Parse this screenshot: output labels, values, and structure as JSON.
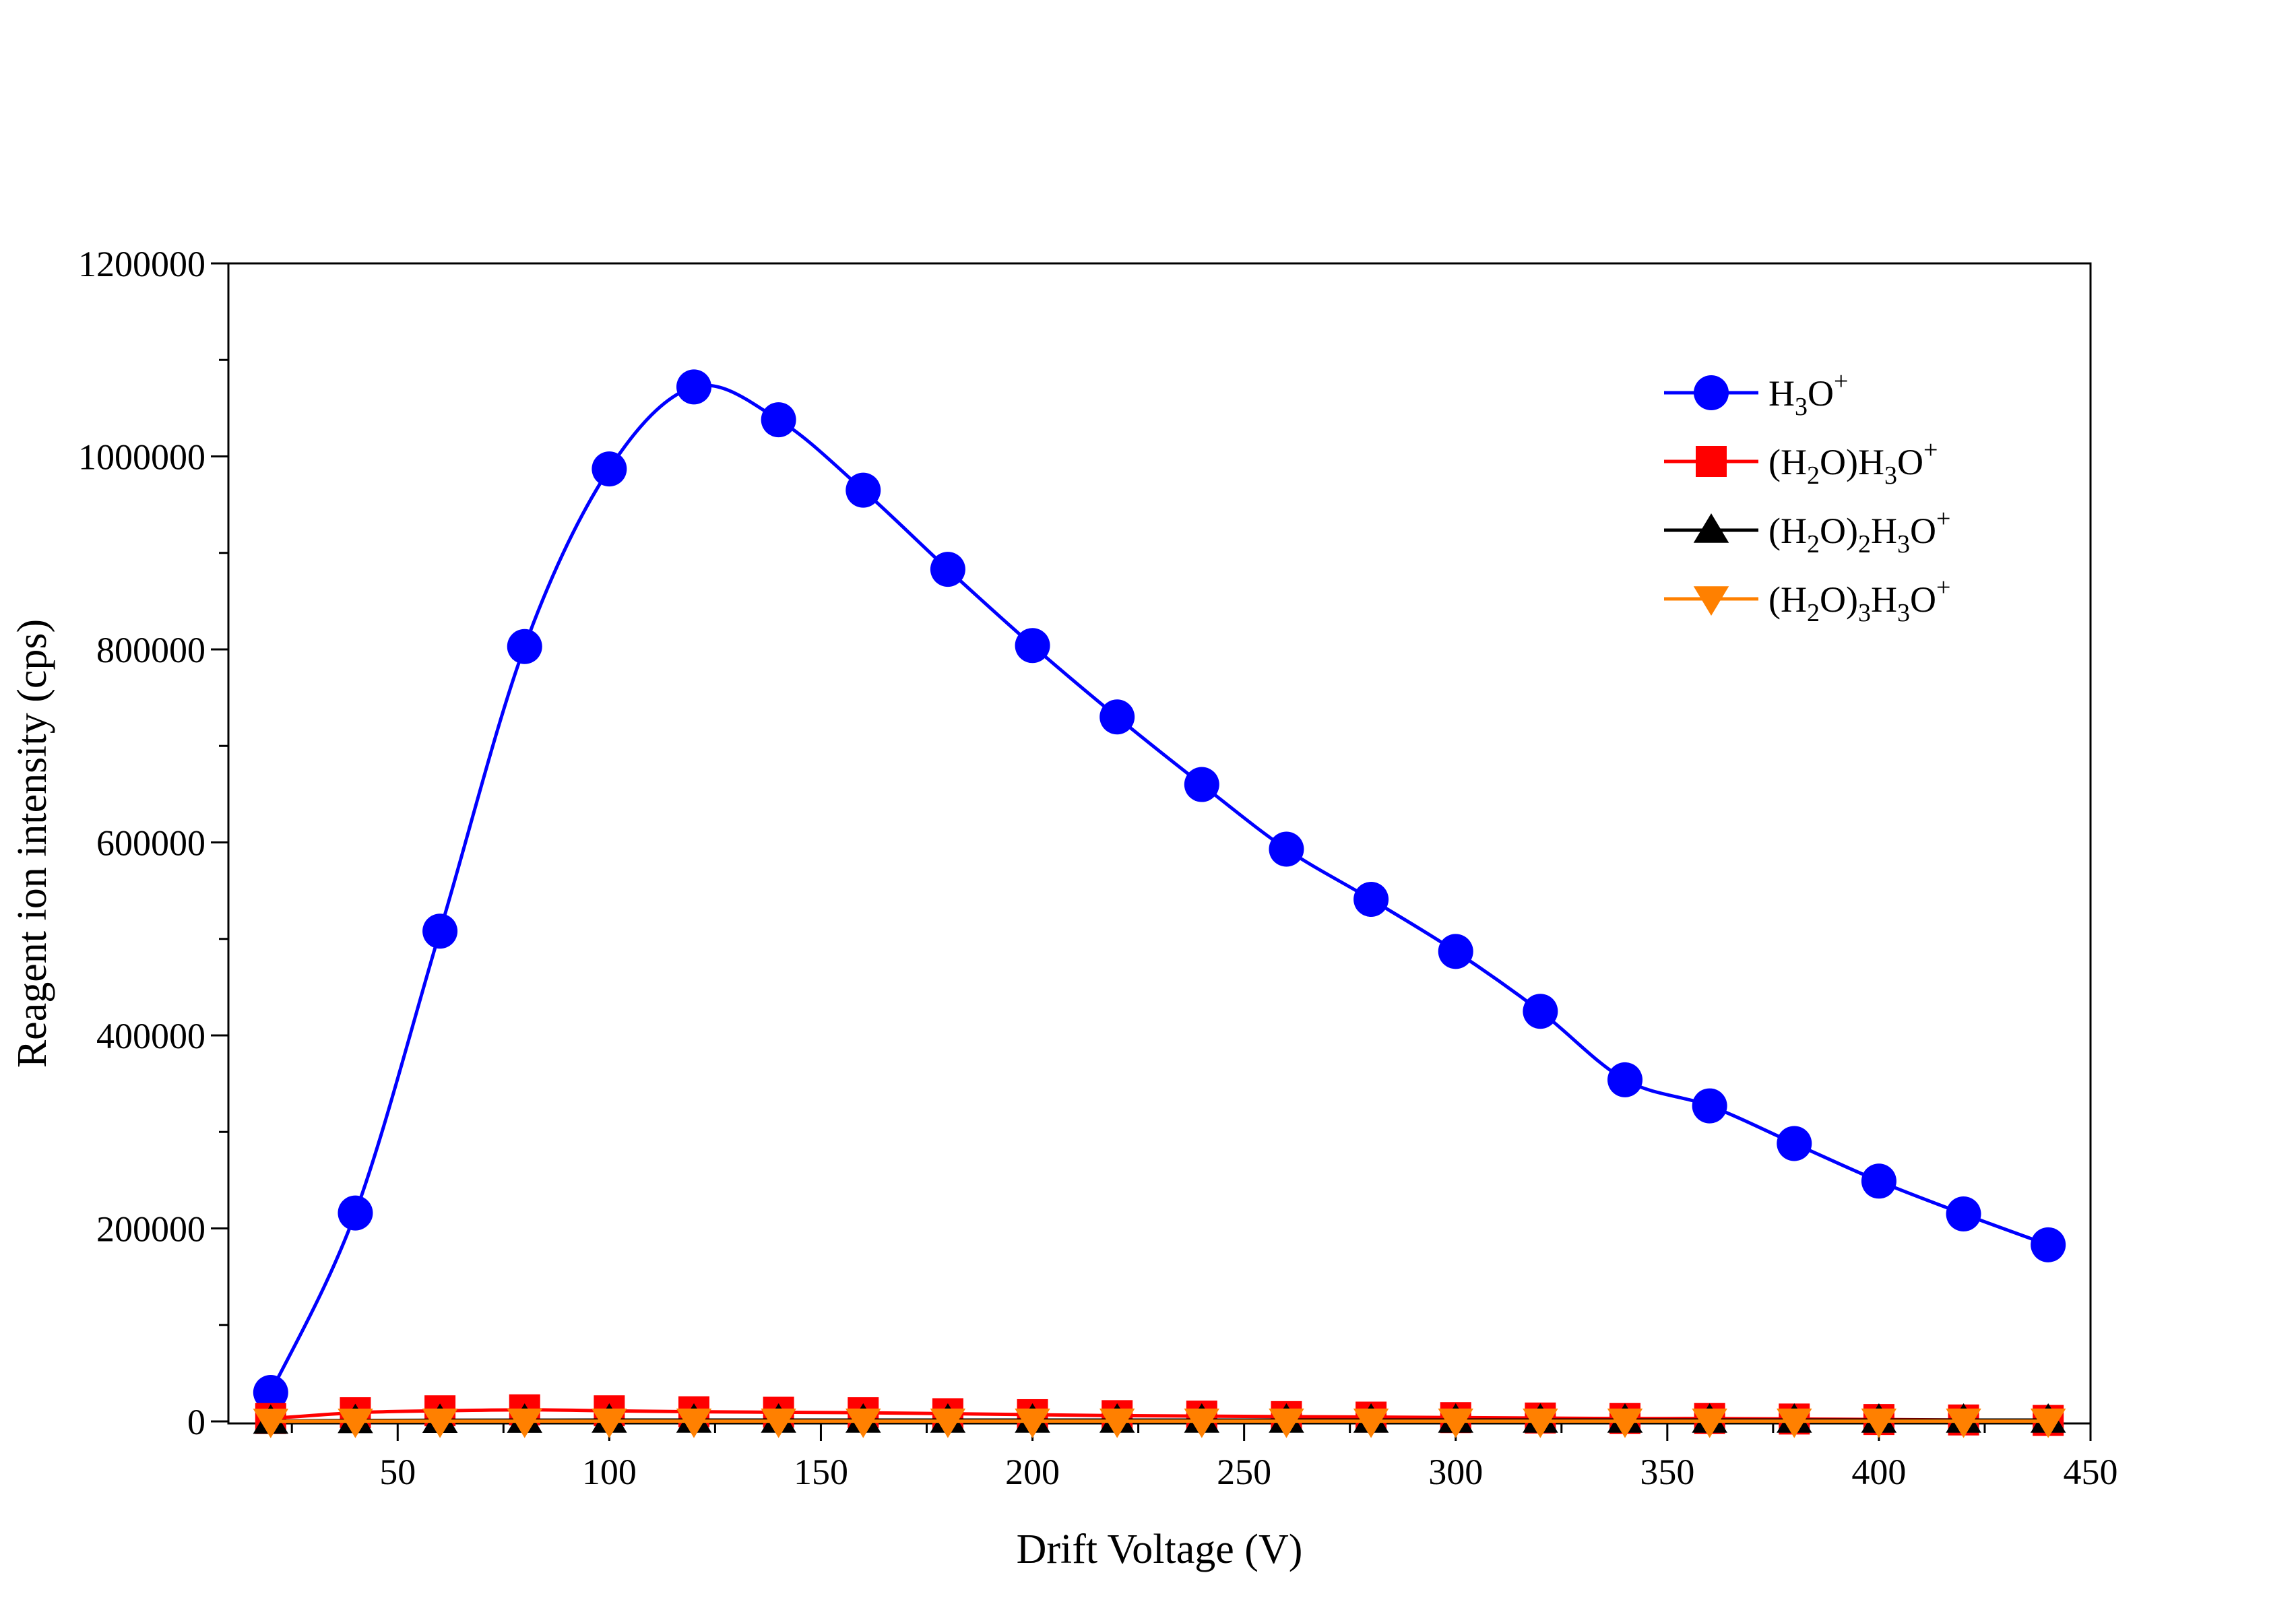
{
  "chart_data": {
    "type": "line",
    "title": "",
    "xlabel": "Drift Voltage (V)",
    "ylabel": "Reagent ion intensity (cps)",
    "xlim": [
      10,
      450
    ],
    "ylim": [
      0,
      1200000
    ],
    "x_ticks": [
      50,
      100,
      150,
      200,
      250,
      300,
      350,
      400,
      450
    ],
    "x_tick_labels": [
      "50",
      "100",
      "150",
      "200",
      "250",
      "300",
      "350",
      "400",
      "450"
    ],
    "y_ticks": [
      0,
      200000,
      400000,
      600000,
      800000,
      1000000,
      1200000
    ],
    "y_tick_labels": [
      "0",
      "200000",
      "400000",
      "600000",
      "800000",
      "1000000",
      "1200000"
    ],
    "grid": false,
    "legend_position": "top-right",
    "x": [
      20,
      40,
      60,
      80,
      100,
      120,
      140,
      160,
      180,
      200,
      220,
      240,
      260,
      280,
      300,
      320,
      340,
      360,
      380,
      400,
      420,
      440
    ],
    "series": [
      {
        "name": "H3O+",
        "legend_parts": [
          [
            "H",
            ""
          ],
          [
            "3",
            "sub"
          ],
          [
            "O",
            ""
          ],
          [
            "+",
            "sup"
          ]
        ],
        "color": "#0000ff",
        "marker": "circle",
        "values": [
          30000,
          216000,
          508000,
          803000,
          987000,
          1072000,
          1038000,
          965000,
          883000,
          804000,
          730000,
          660000,
          593000,
          541000,
          487000,
          425000,
          354000,
          327000,
          288000,
          249000,
          215000,
          183000
        ]
      },
      {
        "name": "(H2O)H3O+",
        "legend_parts": [
          [
            "(H",
            ""
          ],
          [
            "2",
            "sub"
          ],
          [
            "O)H",
            ""
          ],
          [
            "3",
            "sub"
          ],
          [
            "O",
            ""
          ],
          [
            "+",
            "sup"
          ]
        ],
        "color": "#ff0000",
        "marker": "square",
        "values": [
          3000,
          9000,
          11000,
          12000,
          11000,
          10000,
          9500,
          9000,
          8000,
          7000,
          6000,
          5500,
          5000,
          4500,
          4000,
          3500,
          3000,
          3000,
          2500,
          2000,
          1500,
          1000
        ]
      },
      {
        "name": "(H2O)2H3O+",
        "legend_parts": [
          [
            "(H",
            ""
          ],
          [
            "2",
            "sub"
          ],
          [
            "O)",
            ""
          ],
          [
            "2",
            "sub"
          ],
          [
            "H",
            ""
          ],
          [
            "3",
            "sub"
          ],
          [
            "O",
            ""
          ],
          [
            "+",
            "sup"
          ]
        ],
        "color": "#000000",
        "marker": "triangle-up",
        "values": [
          300,
          1000,
          1200,
          1300,
          1400,
          1400,
          1400,
          1400,
          1400,
          1400,
          1400,
          1400,
          1400,
          1400,
          1400,
          1400,
          1400,
          1400,
          1400,
          1400,
          1400,
          1400
        ]
      },
      {
        "name": "(H2O)3H3O+",
        "legend_parts": [
          [
            "(H",
            ""
          ],
          [
            "2",
            "sub"
          ],
          [
            "O)",
            ""
          ],
          [
            "3",
            "sub"
          ],
          [
            "H",
            ""
          ],
          [
            "3",
            "sub"
          ],
          [
            "O",
            ""
          ],
          [
            "+",
            "sup"
          ]
        ],
        "color": "#ff8000",
        "marker": "triangle-down",
        "values": [
          100,
          200,
          300,
          300,
          300,
          300,
          300,
          300,
          300,
          300,
          300,
          300,
          300,
          300,
          300,
          300,
          300,
          300,
          300,
          300,
          300,
          300
        ]
      }
    ]
  }
}
